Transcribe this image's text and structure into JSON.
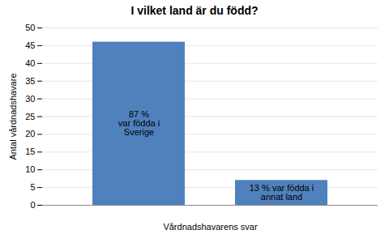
{
  "chart_data": {
    "type": "bar",
    "title": "I vilket land är du född?",
    "categories": [
      null,
      null
    ],
    "values": [
      46,
      7
    ],
    "color": "#4F81BD",
    "annotations": [
      "87 %\nvar födda i\nSverige",
      "13 % var födda i\nannat land"
    ],
    "xlabel": "Vårdnadshavarens svar",
    "ylabel": "Antal vårdnadshavare",
    "ylim": [
      0,
      50
    ],
    "yticks": [
      0,
      5,
      10,
      15,
      20,
      25,
      30,
      35,
      40,
      45,
      50
    ],
    "grid": true,
    "tick_labels": "y"
  }
}
